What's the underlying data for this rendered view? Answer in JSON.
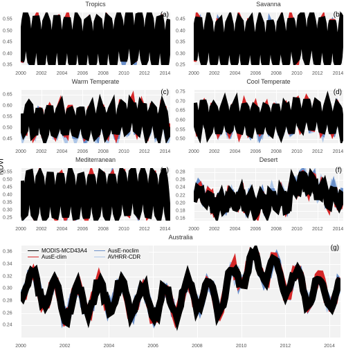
{
  "global_ylabel": "NDVI",
  "x_range": [
    2000,
    2014.5
  ],
  "x_ticks_small": [
    2000,
    2002,
    2004,
    2006,
    2008,
    2010,
    2012,
    2014
  ],
  "x_ticks_big": [
    2000,
    2002,
    2004,
    2006,
    2008,
    2010,
    2012,
    2014
  ],
  "colors": {
    "modis": "#000000",
    "ause_clim": "#d62728",
    "ause_noclim": "#6a8fc9",
    "avhrr": "#aec7e8",
    "background": "#f2f2f2",
    "grid": "#ffffff",
    "text": "#555555"
  },
  "line_width": 1.1,
  "series_order": [
    "avhrr",
    "ause_noclim",
    "ause_clim",
    "modis"
  ],
  "legend": {
    "panel": "g",
    "items": [
      {
        "key": "modis",
        "label": "MODIS-MCD43A4"
      },
      {
        "key": "ause_clim",
        "label": "AusE-clim"
      },
      {
        "key": "ause_noclim",
        "label": "AusE-noclim"
      },
      {
        "key": "avhrr",
        "label": "AVHRR-CDR"
      }
    ],
    "columns": 2
  },
  "panels": [
    {
      "id": "a",
      "title": "Tropics",
      "label": "(a)",
      "ylim": [
        0.35,
        0.58
      ],
      "yticks": [
        0.35,
        0.4,
        0.45,
        0.5,
        0.55
      ],
      "seasonal": {
        "period": 1.0,
        "base": {
          "modis": 0.455,
          "ause_clim": 0.455,
          "ause_noclim": 0.445,
          "avhrr": 0.44
        },
        "amp": {
          "modis": 0.1,
          "ause_clim": 0.1,
          "ause_noclim": 0.095,
          "avhrr": 0.08
        },
        "phase": 0.25,
        "noise": 0.008,
        "trend": 0
      }
    },
    {
      "id": "b",
      "title": "Savanna",
      "label": "(b)",
      "ylim": [
        0.25,
        0.48
      ],
      "yticks": [
        0.25,
        0.3,
        0.35,
        0.4,
        0.45
      ],
      "seasonal": {
        "period": 1.0,
        "base": {
          "modis": 0.35,
          "ause_clim": 0.35,
          "ause_noclim": 0.345,
          "avhrr": 0.34
        },
        "amp": {
          "modis": 0.095,
          "ause_clim": 0.095,
          "ause_noclim": 0.09,
          "avhrr": 0.075
        },
        "phase": 0.2,
        "noise": 0.012,
        "trend": 0
      }
    },
    {
      "id": "c",
      "title": "Warm Temperate",
      "label": "(c)",
      "ylim": [
        0.43,
        0.67
      ],
      "yticks": [
        0.45,
        0.5,
        0.55,
        0.6,
        0.65
      ],
      "seasonal": {
        "period": 1.0,
        "base": {
          "modis": 0.53,
          "ause_clim": 0.53,
          "ause_noclim": 0.52,
          "avhrr": 0.51
        },
        "amp": {
          "modis": 0.06,
          "ause_clim": 0.06,
          "ause_noclim": 0.055,
          "avhrr": 0.05
        },
        "phase": 0.55,
        "noise": 0.025,
        "trend": 0
      }
    },
    {
      "id": "d",
      "title": "Cool Temperate",
      "label": "(d)",
      "ylim": [
        0.48,
        0.76
      ],
      "yticks": [
        0.5,
        0.55,
        0.6,
        0.65,
        0.7,
        0.75
      ],
      "seasonal": {
        "period": 1.0,
        "base": {
          "modis": 0.61,
          "ause_clim": 0.61,
          "ause_noclim": 0.6,
          "avhrr": 0.59
        },
        "amp": {
          "modis": 0.07,
          "ause_clim": 0.07,
          "ause_noclim": 0.065,
          "avhrr": 0.055
        },
        "phase": 0.7,
        "noise": 0.02,
        "trend": 0
      }
    },
    {
      "id": "e",
      "title": "Mediterranean",
      "label": "(e)",
      "ylim": [
        0.23,
        0.58
      ],
      "yticks": [
        0.25,
        0.3,
        0.35,
        0.4,
        0.45,
        0.5,
        0.55
      ],
      "seasonal": {
        "period": 1.0,
        "base": {
          "modis": 0.4,
          "ause_clim": 0.4,
          "ause_noclim": 0.395,
          "avhrr": 0.39
        },
        "amp": {
          "modis": 0.14,
          "ause_clim": 0.14,
          "ause_noclim": 0.135,
          "avhrr": 0.11
        },
        "phase": 0.6,
        "noise": 0.01,
        "trend": 0
      }
    },
    {
      "id": "f",
      "title": "Desert",
      "label": "(f)",
      "ylim": [
        0.155,
        0.29
      ],
      "yticks": [
        0.16,
        0.18,
        0.2,
        0.22,
        0.24,
        0.26,
        0.28
      ],
      "seasonal": {
        "period": 1.0,
        "base": {
          "modis": 0.205,
          "ause_clim": 0.205,
          "ause_noclim": 0.21,
          "avhrr": 0.21
        },
        "amp": {
          "modis": 0.02,
          "ause_clim": 0.02,
          "ause_noclim": 0.018,
          "avhrr": 0.016
        },
        "phase": 0.3,
        "noise": 0.015,
        "trend": 0.001
      }
    },
    {
      "id": "g",
      "title": "Australia",
      "label": "(g)",
      "fullwidth": true,
      "ylim": [
        0.22,
        0.37
      ],
      "yticks": [
        0.24,
        0.26,
        0.28,
        0.3,
        0.32,
        0.34,
        0.36
      ],
      "seasonal": {
        "period": 1.0,
        "base": {
          "modis": 0.285,
          "ause_clim": 0.285,
          "ause_noclim": 0.285,
          "avhrr": 0.285
        },
        "amp": {
          "modis": 0.025,
          "ause_clim": 0.025,
          "ause_noclim": 0.023,
          "avhrr": 0.02
        },
        "phase": 0.3,
        "noise": 0.015,
        "trend": 0.001
      }
    }
  ]
}
